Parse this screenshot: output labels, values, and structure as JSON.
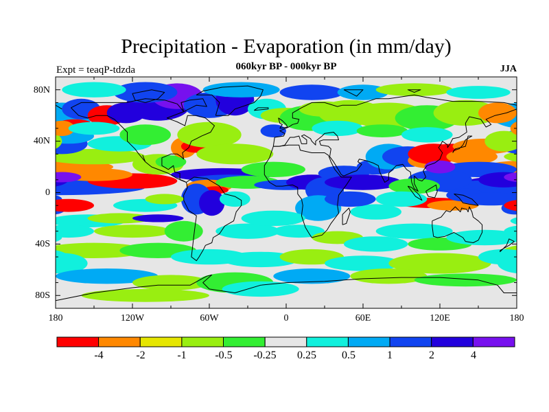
{
  "title": "Precipitation - Evaporation (in mm/day)",
  "subtitle": "060kyr BP - 000kyr BP",
  "left_label": "Expt = teaqP-tdzda",
  "right_label": "JJA",
  "map": {
    "projection": "cylindrical equidistant",
    "extent": {
      "lon": [
        -180,
        180
      ],
      "lat": [
        -90,
        90
      ]
    },
    "lat_ticks": [
      "80N",
      "40N",
      "0",
      "40S",
      "80S"
    ],
    "lon_ticks": [
      "180",
      "120W",
      "60W",
      "0",
      "60E",
      "120E",
      "180"
    ],
    "lat_tick_values": [
      80,
      40,
      0,
      -40,
      -80
    ],
    "lon_tick_values": [
      -180,
      -120,
      -60,
      0,
      60,
      120,
      180
    ],
    "land_outline_color": "#000000",
    "near_zero_fill": "#e6e6e6"
  },
  "colorbar": {
    "labels": [
      "-4",
      "-2",
      "-1",
      "-0.5",
      "-0.25",
      "0.25",
      "0.5",
      "1",
      "2",
      "4"
    ],
    "colors": [
      "#ff0000",
      "#ff8800",
      "#e6e600",
      "#99ee11",
      "#33ee33",
      "#e6e6e6",
      "#11f0dd",
      "#00aaf4",
      "#1144f0",
      "#2200dd",
      "#7711ee"
    ]
  }
}
